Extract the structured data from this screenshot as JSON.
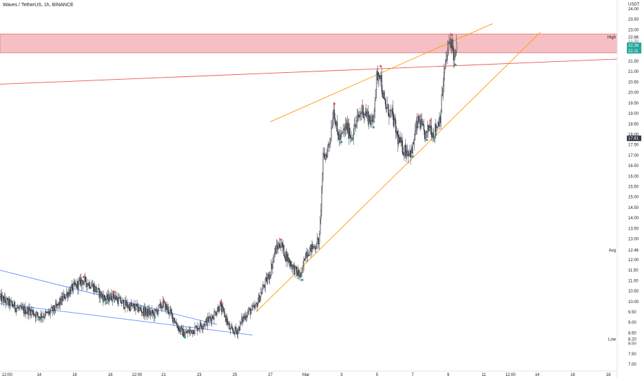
{
  "chart_data": {
    "type": "candlestick",
    "title": "Waves / TetherUS, 1h, BINANCE",
    "y_unit": "USDT",
    "ylim": [
      7.0,
      24.0
    ],
    "y_ticks": [
      "24.00",
      "23.50",
      "23.00",
      "22.50",
      "22.00",
      "21.50",
      "21.00",
      "20.50",
      "20.00",
      "19.50",
      "19.00",
      "18.50",
      "18.00",
      "17.50",
      "17.00",
      "16.50",
      "16.00",
      "15.50",
      "15.00",
      "14.50",
      "14.00",
      "13.50",
      "13.00",
      "12.50",
      "12.00",
      "11.50",
      "11.00",
      "10.50",
      "10.00",
      "9.50",
      "9.00",
      "8.50",
      "8.00",
      "7.50",
      "7.00"
    ],
    "y_tick_values": [
      24.0,
      23.5,
      23.0,
      22.5,
      22.0,
      21.5,
      21.0,
      20.5,
      20.0,
      19.5,
      19.0,
      18.5,
      18.0,
      17.5,
      17.0,
      16.5,
      16.0,
      15.5,
      15.0,
      14.5,
      14.0,
      13.5,
      13.0,
      12.5,
      12.0,
      11.5,
      11.0,
      10.5,
      10.0,
      9.5,
      9.0,
      8.5,
      8.0,
      7.5,
      7.0
    ],
    "x_ticks": [
      {
        "label": "12:00",
        "t": -0.8
      },
      {
        "label": "14",
        "t": 1.0
      },
      {
        "label": "16",
        "t": 3.0
      },
      {
        "label": "18",
        "t": 5.0
      },
      {
        "label": "12:00",
        "t": 6.5
      },
      {
        "label": "21",
        "t": 8.0
      },
      {
        "label": "23",
        "t": 10.0
      },
      {
        "label": "25",
        "t": 12.0
      },
      {
        "label": "27",
        "t": 14.0
      },
      {
        "label": "Mar",
        "t": 16.0
      },
      {
        "label": "3",
        "t": 18.0
      },
      {
        "label": "5",
        "t": 20.0
      },
      {
        "label": "7",
        "t": 22.0
      },
      {
        "label": "9",
        "t": 24.0
      },
      {
        "label": "11",
        "t": 26.0
      },
      {
        "label": "12:00",
        "t": 27.5
      },
      {
        "label": "14",
        "t": 29.0
      },
      {
        "label": "16",
        "t": 31.0
      },
      {
        "label": "18",
        "t": 33.0
      }
    ],
    "x_range": [
      -1.2,
      33.5
    ],
    "price_path": [
      [
        -1.2,
        10.2
      ],
      [
        -0.6,
        9.9
      ],
      [
        0.0,
        9.6
      ],
      [
        0.6,
        9.55
      ],
      [
        1.0,
        9.3
      ],
      [
        1.5,
        9.4
      ],
      [
        2.0,
        9.7
      ],
      [
        2.5,
        10.3
      ],
      [
        3.0,
        10.7
      ],
      [
        3.5,
        11.0
      ],
      [
        4.0,
        10.8
      ],
      [
        4.4,
        10.4
      ],
      [
        4.8,
        10.1
      ],
      [
        5.2,
        10.3
      ],
      [
        5.6,
        10.0
      ],
      [
        6.0,
        9.8
      ],
      [
        6.5,
        9.7
      ],
      [
        7.0,
        9.5
      ],
      [
        7.5,
        9.4
      ],
      [
        8.0,
        9.9
      ],
      [
        8.3,
        9.6
      ],
      [
        8.6,
        9.2
      ],
      [
        8.9,
        8.7
      ],
      [
        9.2,
        8.45
      ],
      [
        9.6,
        8.6
      ],
      [
        10.0,
        8.8
      ],
      [
        10.4,
        9.0
      ],
      [
        10.8,
        9.3
      ],
      [
        11.2,
        9.8
      ],
      [
        11.5,
        9.3
      ],
      [
        11.8,
        8.6
      ],
      [
        12.2,
        8.6
      ],
      [
        12.5,
        9.2
      ],
      [
        12.8,
        9.5
      ],
      [
        13.2,
        9.7
      ],
      [
        13.6,
        10.6
      ],
      [
        14.0,
        11.3
      ],
      [
        14.3,
        12.4
      ],
      [
        14.6,
        12.8
      ],
      [
        14.9,
        12.2
      ],
      [
        15.2,
        11.8
      ],
      [
        15.5,
        11.4
      ],
      [
        15.8,
        11.2
      ],
      [
        16.0,
        12.3
      ],
      [
        16.3,
        12.5
      ],
      [
        16.6,
        12.7
      ],
      [
        16.8,
        13.0
      ],
      [
        17.0,
        16.8
      ],
      [
        17.2,
        17.1
      ],
      [
        17.4,
        17.8
      ],
      [
        17.6,
        19.3
      ],
      [
        17.8,
        18.0
      ],
      [
        18.0,
        17.8
      ],
      [
        18.3,
        18.4
      ],
      [
        18.6,
        17.9
      ],
      [
        18.9,
        18.6
      ],
      [
        19.2,
        19.2
      ],
      [
        19.5,
        18.9
      ],
      [
        19.8,
        18.5
      ],
      [
        20.0,
        20.6
      ],
      [
        20.2,
        21.1
      ],
      [
        20.4,
        19.6
      ],
      [
        20.6,
        19.2
      ],
      [
        20.9,
        18.9
      ],
      [
        21.2,
        17.8
      ],
      [
        21.5,
        17.3
      ],
      [
        21.8,
        17.2
      ],
      [
        22.0,
        17.1
      ],
      [
        22.2,
        18.2
      ],
      [
        22.4,
        18.7
      ],
      [
        22.6,
        18.2
      ],
      [
        22.8,
        17.9
      ],
      [
        23.0,
        18.5
      ],
      [
        23.2,
        18.0
      ],
      [
        23.4,
        18.4
      ],
      [
        23.6,
        18.9
      ],
      [
        23.8,
        20.8
      ],
      [
        24.0,
        22.0
      ],
      [
        24.2,
        22.6
      ],
      [
        24.4,
        21.5
      ],
      [
        24.5,
        22.1
      ]
    ],
    "resistance_zone": {
      "low": 21.9,
      "high": 22.8
    },
    "lines": [
      {
        "name": "descending-channel-upper",
        "color": "#5b8ff9",
        "points": [
          [
            -1.2,
            11.5
          ],
          [
            11.0,
            8.9
          ]
        ]
      },
      {
        "name": "descending-channel-lower",
        "color": "#5b8ff9",
        "points": [
          [
            -1.2,
            9.9
          ],
          [
            13.0,
            8.4
          ]
        ]
      },
      {
        "name": "resistance-trendline",
        "color": "#ef5350",
        "points": [
          [
            -1.2,
            20.4
          ],
          [
            33.5,
            21.6
          ]
        ]
      },
      {
        "name": "wedge-upper",
        "color": "#ff9800",
        "points": [
          [
            14.0,
            18.6
          ],
          [
            26.5,
            23.3
          ]
        ]
      },
      {
        "name": "wedge-lower",
        "color": "#ff9800",
        "points": [
          [
            13.2,
            9.5
          ],
          [
            29.2,
            22.9
          ]
        ]
      }
    ],
    "price_tags": [
      {
        "label": "High",
        "value": 22.66,
        "kind": "text-left"
      },
      {
        "label": "22.66",
        "value": 22.66,
        "kind": "plain"
      },
      {
        "label": "22.50",
        "value": 22.35,
        "kind": "plain"
      },
      {
        "label": "22.26",
        "value": 22.26,
        "kind": "green"
      },
      {
        "label": "22.11",
        "value": 22.0,
        "kind": "green"
      },
      {
        "label": "17.81",
        "value": 17.81,
        "kind": "dark"
      },
      {
        "label": "Avg",
        "value": 12.46,
        "kind": "text-left"
      },
      {
        "label": "12.46",
        "value": 12.46,
        "kind": "plain"
      },
      {
        "label": "Low",
        "value": 8.2,
        "kind": "text-left"
      },
      {
        "label": "8.20",
        "value": 8.2,
        "kind": "plain"
      }
    ],
    "colors": {
      "zone_fill": "#f4b8bd",
      "zone_stroke": "#e57373",
      "candle": "#2a2e39",
      "green_tag": "#26a69a",
      "dark_tag": "#363a45",
      "axis_text": "#131722",
      "sell_marker": "#ef5350",
      "buy_marker": "#26a69a"
    }
  }
}
